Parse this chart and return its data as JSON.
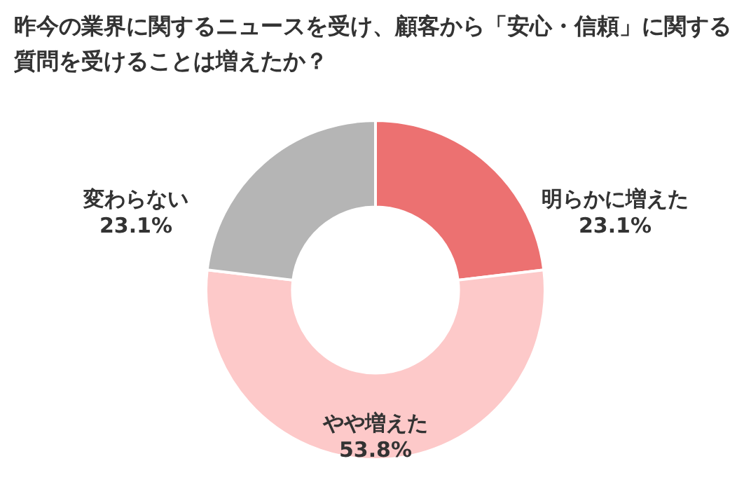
{
  "chart_data": {
    "type": "donut",
    "title": "昨今の業界に関するニュースを受け、顧客から「安心・信頼」に関する質問を受けることは増えたか？",
    "categories": [
      "明らかに増えた",
      "やや増えた",
      "変わらない"
    ],
    "values": [
      23.1,
      53.8,
      23.1
    ],
    "value_labels": [
      "23.1%",
      "53.8%",
      "23.1%"
    ],
    "colors": [
      "#ec7171",
      "#fdc9c9",
      "#b5b5b5"
    ],
    "legend": false
  }
}
